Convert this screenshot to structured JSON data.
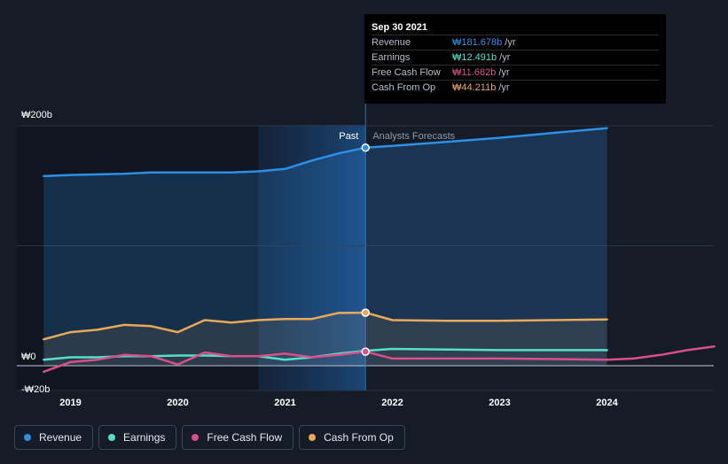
{
  "tooltip": {
    "date": "Sep 30 2021",
    "rows": [
      {
        "label": "Revenue",
        "value": "₩181.678b",
        "unit": "/yr",
        "color": "#2d8fe6"
      },
      {
        "label": "Earnings",
        "value": "₩12.491b",
        "unit": "/yr",
        "color": "#56e0c9"
      },
      {
        "label": "Free Cash Flow",
        "value": "₩11.682b",
        "unit": "/yr",
        "color": "#d94f8a"
      },
      {
        "label": "Cash From Op",
        "value": "₩44.211b",
        "unit": "/yr",
        "color": "#e8a95a"
      }
    ]
  },
  "region_labels": {
    "past": "Past",
    "forecast": "Analysts Forecasts"
  },
  "legend": [
    {
      "label": "Revenue",
      "color": "#2d8fe6"
    },
    {
      "label": "Earnings",
      "color": "#56e0c9"
    },
    {
      "label": "Free Cash Flow",
      "color": "#d94f8a"
    },
    {
      "label": "Cash From Op",
      "color": "#e8a95a"
    }
  ],
  "chart_data": {
    "type": "line",
    "y_tick_labels": [
      {
        "value": 200,
        "label": "₩200b"
      },
      {
        "value": 0,
        "label": "₩0"
      },
      {
        "value": -20,
        "label": "-₩20b"
      }
    ],
    "x_tick_labels": [
      {
        "value": 2019,
        "label": "2019"
      },
      {
        "value": 2020,
        "label": "2020"
      },
      {
        "value": 2021,
        "label": "2021"
      },
      {
        "value": 2022,
        "label": "2022"
      },
      {
        "value": 2023,
        "label": "2023"
      },
      {
        "value": 2024,
        "label": "2024"
      }
    ],
    "xlim": [
      2018.5,
      2025.0
    ],
    "ylim": [
      -20,
      200
    ],
    "divider_x": 2021.75,
    "highlight_range": [
      2020.75,
      2021.75
    ],
    "forecast_end": 2024.0,
    "series": [
      {
        "name": "Revenue",
        "color": "#2d8fe6",
        "points": [
          [
            2018.75,
            158
          ],
          [
            2019.0,
            159
          ],
          [
            2019.5,
            160
          ],
          [
            2019.75,
            161
          ],
          [
            2020.0,
            161
          ],
          [
            2020.5,
            161
          ],
          [
            2020.75,
            162
          ],
          [
            2021.0,
            164
          ],
          [
            2021.25,
            171
          ],
          [
            2021.5,
            177
          ],
          [
            2021.75,
            181.7
          ],
          [
            2022.0,
            183.2
          ],
          [
            2022.5,
            186.5
          ],
          [
            2023.0,
            190
          ],
          [
            2023.5,
            194
          ],
          [
            2024.0,
            198
          ]
        ]
      },
      {
        "name": "Earnings",
        "color": "#56e0c9",
        "points": [
          [
            2018.75,
            5
          ],
          [
            2019.0,
            7
          ],
          [
            2019.25,
            7
          ],
          [
            2019.5,
            8
          ],
          [
            2019.75,
            8
          ],
          [
            2020.0,
            8.5
          ],
          [
            2020.25,
            8.5
          ],
          [
            2020.5,
            8
          ],
          [
            2020.75,
            8
          ],
          [
            2021.0,
            5
          ],
          [
            2021.25,
            7
          ],
          [
            2021.5,
            10
          ],
          [
            2021.75,
            12.5
          ],
          [
            2022.0,
            14
          ],
          [
            2022.5,
            13.5
          ],
          [
            2023.0,
            13
          ],
          [
            2023.5,
            13
          ],
          [
            2024.0,
            13
          ]
        ]
      },
      {
        "name": "Free Cash Flow",
        "color": "#d94f8a",
        "points": [
          [
            2018.75,
            -5
          ],
          [
            2019.0,
            3
          ],
          [
            2019.25,
            5
          ],
          [
            2019.5,
            9
          ],
          [
            2019.75,
            8
          ],
          [
            2020.0,
            1
          ],
          [
            2020.25,
            11
          ],
          [
            2020.5,
            8
          ],
          [
            2020.75,
            8
          ],
          [
            2021.0,
            10
          ],
          [
            2021.25,
            7
          ],
          [
            2021.5,
            9
          ],
          [
            2021.75,
            11.7
          ],
          [
            2022.0,
            6
          ],
          [
            2022.5,
            6
          ],
          [
            2023.0,
            6
          ],
          [
            2023.5,
            5.5
          ],
          [
            2024.0,
            5
          ],
          [
            2024.25,
            6
          ],
          [
            2024.5,
            9
          ],
          [
            2024.75,
            13
          ],
          [
            2025.0,
            16
          ]
        ]
      },
      {
        "name": "Cash From Op",
        "color": "#e8a95a",
        "points": [
          [
            2018.75,
            22
          ],
          [
            2019.0,
            28
          ],
          [
            2019.25,
            30
          ],
          [
            2019.5,
            34
          ],
          [
            2019.75,
            33
          ],
          [
            2020.0,
            28
          ],
          [
            2020.25,
            38
          ],
          [
            2020.5,
            36
          ],
          [
            2020.75,
            38
          ],
          [
            2021.0,
            39
          ],
          [
            2021.25,
            39
          ],
          [
            2021.5,
            44
          ],
          [
            2021.75,
            44.2
          ],
          [
            2022.0,
            38
          ],
          [
            2022.5,
            37.5
          ],
          [
            2023.0,
            37.5
          ],
          [
            2023.5,
            38
          ],
          [
            2024.0,
            38.5
          ]
        ]
      }
    ]
  }
}
